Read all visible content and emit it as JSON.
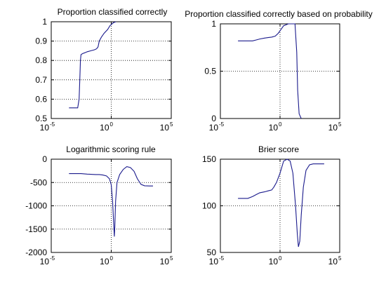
{
  "chart_data": [
    {
      "type": "line",
      "title": "Proportion classified correctly",
      "xscale": "log",
      "xlim": [
        1e-05,
        100000.0
      ],
      "xticks": [
        1e-05,
        1,
        100000.0
      ],
      "xtick_labels": [
        {
          "base": "10",
          "exp": "-5"
        },
        {
          "base": "10",
          "exp": "0"
        },
        {
          "base": "10",
          "exp": "5"
        }
      ],
      "ylim": [
        0.5,
        1
      ],
      "yticks": [
        0.5,
        0.6,
        0.7,
        0.8,
        0.9,
        1
      ],
      "ytick_labels": [
        "0.5",
        "0.6",
        "0.7",
        "0.8",
        "0.9",
        "1"
      ],
      "grid": true,
      "series": [
        {
          "color": "#1a1a8c",
          "x": [
            0.0003,
            0.0016,
            0.0021,
            0.0024,
            0.0027,
            0.003,
            0.004,
            0.0063,
            0.01,
            0.02,
            0.04,
            0.06,
            0.08,
            0.1,
            0.15,
            0.25,
            0.5,
            0.8,
            1.5,
            2.5
          ],
          "y": [
            0.555,
            0.555,
            0.6,
            0.7,
            0.8,
            0.83,
            0.835,
            0.84,
            0.845,
            0.85,
            0.855,
            0.86,
            0.87,
            0.9,
            0.92,
            0.94,
            0.96,
            0.98,
            0.995,
            1.0
          ]
        }
      ]
    },
    {
      "type": "line",
      "title": "Proportion classified correctly based on probability",
      "xscale": "log",
      "xlim": [
        1e-05,
        100000.0
      ],
      "xticks": [
        1e-05,
        1,
        100000.0
      ],
      "xtick_labels": [
        {
          "base": "10",
          "exp": "-5"
        },
        {
          "base": "10",
          "exp": "0"
        },
        {
          "base": "10",
          "exp": "5"
        }
      ],
      "ylim": [
        0,
        1
      ],
      "yticks": [
        0,
        0.5,
        1
      ],
      "ytick_labels": [
        "0",
        "0.5",
        "1"
      ],
      "grid": true,
      "series": [
        {
          "color": "#1a1a8c",
          "x": [
            0.0003,
            0.005,
            0.01,
            0.02,
            0.05,
            0.1,
            0.2,
            0.4,
            0.7,
            1.2,
            2,
            5,
            12,
            18,
            25,
            30,
            40,
            60
          ],
          "y": [
            0.82,
            0.82,
            0.83,
            0.84,
            0.85,
            0.855,
            0.86,
            0.87,
            0.9,
            0.94,
            0.98,
            1.0,
            1.0,
            1.0,
            0.7,
            0.3,
            0.05,
            0.0
          ]
        }
      ]
    },
    {
      "type": "line",
      "title": "Logarithmic scoring rule",
      "xscale": "log",
      "xlim": [
        1e-05,
        100000.0
      ],
      "xticks": [
        1e-05,
        1,
        100000.0
      ],
      "xtick_labels": [
        {
          "base": "10",
          "exp": "-5"
        },
        {
          "base": "10",
          "exp": "0"
        },
        {
          "base": "10",
          "exp": "5"
        }
      ],
      "ylim": [
        -2000,
        0
      ],
      "yticks": [
        -2000,
        -1500,
        -1000,
        -500,
        0
      ],
      "ytick_labels": [
        "-2000",
        "-1500",
        "-1000",
        "-500",
        "0"
      ],
      "grid": true,
      "series": [
        {
          "color": "#1a1a8c",
          "x": [
            0.0003,
            0.003,
            0.01,
            0.05,
            0.1,
            0.2,
            0.4,
            0.7,
            1.0,
            1.3,
            1.6,
            1.8,
            2.0,
            2.3,
            3,
            5,
            10,
            20,
            40,
            80,
            150,
            300,
            600,
            1500,
            3000
          ],
          "y": [
            -310,
            -310,
            -320,
            -330,
            -330,
            -340,
            -360,
            -420,
            -550,
            -900,
            -1400,
            -1660,
            -1450,
            -900,
            -500,
            -330,
            -220,
            -160,
            -180,
            -260,
            -420,
            -540,
            -570,
            -575,
            -575
          ]
        }
      ]
    },
    {
      "type": "line",
      "title": "Brier score",
      "xscale": "log",
      "xlim": [
        1e-05,
        100000.0
      ],
      "xticks": [
        1e-05,
        1,
        100000.0
      ],
      "xtick_labels": [
        {
          "base": "10",
          "exp": "-5"
        },
        {
          "base": "10",
          "exp": "0"
        },
        {
          "base": "10",
          "exp": "5"
        }
      ],
      "ylim": [
        50,
        150
      ],
      "yticks": [
        50,
        100,
        150
      ],
      "ytick_labels": [
        "50",
        "100",
        "150"
      ],
      "grid": true,
      "series": [
        {
          "color": "#1a1a8c",
          "x": [
            0.0003,
            0.002,
            0.005,
            0.01,
            0.02,
            0.05,
            0.1,
            0.2,
            0.3,
            0.5,
            1,
            2,
            4,
            7,
            12,
            20,
            28,
            35,
            45,
            60,
            90,
            150,
            300,
            600,
            1500,
            5000
          ],
          "y": [
            108,
            108,
            110,
            112,
            114,
            115,
            116,
            117,
            120,
            125,
            135,
            148,
            150,
            148,
            135,
            100,
            70,
            56,
            62,
            90,
            120,
            138,
            144,
            145,
            145,
            145
          ]
        }
      ]
    }
  ]
}
